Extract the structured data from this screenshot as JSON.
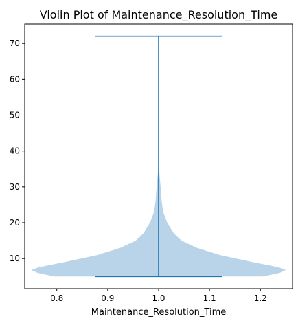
{
  "chart_data": {
    "type": "violin",
    "title": "Violin Plot of Maintenance_Resolution_Time",
    "xlabel": "Maintenance_Resolution_Time",
    "ylabel": "",
    "xlim": [
      0.737,
      1.263
    ],
    "ylim": [
      1.6,
      75.4
    ],
    "xticks": [
      0.8,
      0.9,
      1.0,
      1.1,
      1.2
    ],
    "xtick_labels": [
      "0.8",
      "0.9",
      "1.0",
      "1.1",
      "1.2"
    ],
    "yticks": [
      10,
      20,
      30,
      40,
      50,
      60,
      70
    ],
    "ytick_labels": [
      "10",
      "20",
      "30",
      "40",
      "50",
      "60",
      "70"
    ],
    "grid": false,
    "series": [
      {
        "position": 1.0,
        "min": 5,
        "max": 72,
        "cap_halfwidth": 0.125,
        "violin_color": "#b9d4e8",
        "line_color": "#1f77b4",
        "density_profile": [
          {
            "y": 5.0,
            "halfwidth": 0.205
          },
          {
            "y": 6.0,
            "halfwidth": 0.238
          },
          {
            "y": 6.8,
            "halfwidth": 0.25
          },
          {
            "y": 7.6,
            "halfwidth": 0.235
          },
          {
            "y": 9.0,
            "halfwidth": 0.185
          },
          {
            "y": 11.0,
            "halfwidth": 0.12
          },
          {
            "y": 13.0,
            "halfwidth": 0.075
          },
          {
            "y": 15.0,
            "halfwidth": 0.045
          },
          {
            "y": 17.0,
            "halfwidth": 0.03
          },
          {
            "y": 20.0,
            "halfwidth": 0.017
          },
          {
            "y": 23.0,
            "halfwidth": 0.009
          },
          {
            "y": 26.0,
            "halfwidth": 0.006
          },
          {
            "y": 30.0,
            "halfwidth": 0.004
          },
          {
            "y": 33.0,
            "halfwidth": 0.002
          },
          {
            "y": 36.0,
            "halfwidth": 0.0005
          }
        ]
      }
    ]
  }
}
